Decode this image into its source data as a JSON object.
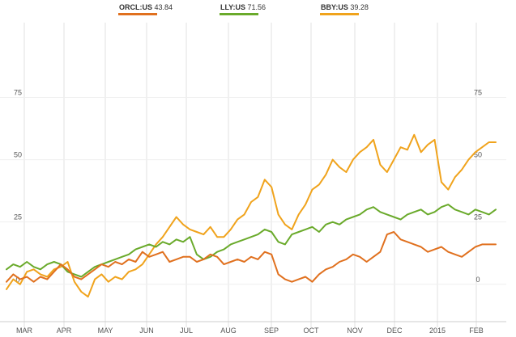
{
  "chart_data": {
    "type": "line",
    "legend": [
      {
        "ticker": "ORCL:US",
        "value": "43.84",
        "color": "#e0701e"
      },
      {
        "ticker": "LLY:US",
        "value": "71.56",
        "color": "#6aaa2b"
      },
      {
        "ticker": "BBY:US",
        "value": "39.28",
        "color": "#f0a31c"
      }
    ],
    "x_ticks": [
      "MAR",
      "APR",
      "MAY",
      "JUN",
      "JUL",
      "AUG",
      "SEP",
      "OCT",
      "NOV",
      "DEC",
      "2015",
      "FEB"
    ],
    "y_ticks": [
      "0",
      "25",
      "50",
      "75"
    ],
    "ylim": [
      -15,
      105
    ],
    "legend_position": "top",
    "grid": true,
    "y_unit": "percent change",
    "x": [
      0,
      5,
      10,
      15,
      20,
      25,
      30,
      35,
      40,
      45,
      50,
      55,
      60,
      65,
      70,
      75,
      80,
      85,
      90,
      95,
      100,
      105,
      110,
      115,
      120,
      125,
      130,
      135,
      140,
      145,
      150,
      155,
      160,
      165,
      170,
      175,
      180,
      185,
      190,
      195,
      200,
      205,
      210,
      215,
      220,
      225,
      230,
      235,
      240,
      245,
      250,
      255,
      260,
      265,
      270,
      275,
      280,
      285,
      290,
      295,
      300,
      305,
      310,
      315,
      320,
      325,
      330,
      335,
      340,
      345,
      350,
      355,
      360
    ],
    "series": [
      {
        "name": "ORCL:US",
        "color": "#e0701e",
        "values": [
          1,
          4,
          2,
          3,
          1,
          3,
          2,
          5,
          8,
          6,
          3,
          2,
          4,
          6,
          8,
          7,
          9,
          8,
          10,
          9,
          13,
          11,
          12,
          13,
          9,
          10,
          11,
          11,
          9,
          10,
          12,
          11,
          8,
          9,
          10,
          9,
          11,
          10,
          13,
          12,
          4,
          2,
          1,
          2,
          3,
          1,
          4,
          6,
          7,
          9,
          10,
          12,
          11,
          9,
          11,
          13,
          20,
          21,
          18,
          17,
          16,
          15,
          13,
          14,
          15,
          13,
          12,
          11,
          13,
          15,
          16,
          16,
          16
        ]
      },
      {
        "name": "LLY:US",
        "color": "#6aaa2b",
        "values": [
          6,
          8,
          7,
          9,
          7,
          6,
          8,
          9,
          8,
          5,
          4,
          3,
          5,
          7,
          8,
          9,
          10,
          11,
          12,
          14,
          15,
          16,
          15,
          17,
          16,
          18,
          17,
          19,
          12,
          10,
          11,
          13,
          14,
          16,
          17,
          18,
          19,
          20,
          22,
          21,
          17,
          16,
          20,
          21,
          22,
          23,
          21,
          24,
          25,
          24,
          26,
          27,
          28,
          30,
          31,
          29,
          28,
          27,
          26,
          28,
          29,
          30,
          28,
          29,
          31,
          32,
          30,
          29,
          28,
          30,
          29,
          28,
          30
        ]
      },
      {
        "name": "BBY:US",
        "color": "#f0a31c",
        "values": [
          -2,
          2,
          0,
          5,
          6,
          4,
          3,
          6,
          7,
          9,
          1,
          -3,
          -5,
          2,
          4,
          1,
          3,
          2,
          5,
          6,
          8,
          12,
          16,
          19,
          23,
          27,
          24,
          22,
          21,
          20,
          23,
          19,
          19,
          22,
          26,
          28,
          33,
          35,
          42,
          39,
          28,
          24,
          22,
          28,
          32,
          38,
          40,
          44,
          50,
          47,
          45,
          50,
          53,
          55,
          58,
          48,
          45,
          50,
          55,
          54,
          60,
          53,
          56,
          58,
          41,
          38,
          43,
          46,
          50,
          53,
          55,
          57,
          57
        ]
      }
    ]
  }
}
